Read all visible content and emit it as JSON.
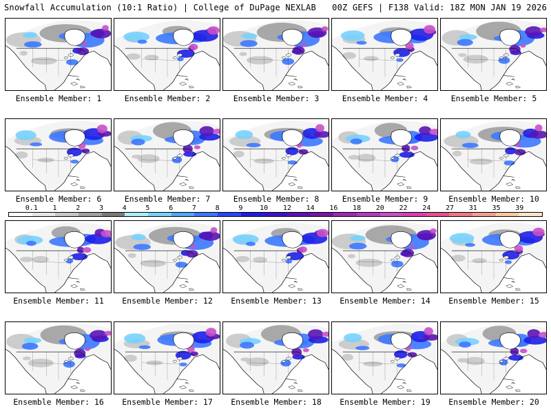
{
  "header": {
    "left_title": "Snowfall Accumulation (10:1 Ratio) | College of DuPage NEXLAB",
    "right_title": "00Z GEFS | F138 Valid: 18Z MON JAN 19 2026"
  },
  "panels": [
    {
      "label": "Ensemble Member: 1"
    },
    {
      "label": "Ensemble Member: 2"
    },
    {
      "label": "Ensemble Member: 3"
    },
    {
      "label": "Ensemble Member: 4"
    },
    {
      "label": "Ensemble Member: 5"
    },
    {
      "label": "Ensemble Member: 6"
    },
    {
      "label": "Ensemble Member: 7"
    },
    {
      "label": "Ensemble Member: 8"
    },
    {
      "label": "Ensemble Member: 9"
    },
    {
      "label": "Ensemble Member: 10"
    },
    {
      "label": "Ensemble Member: 11"
    },
    {
      "label": "Ensemble Member: 12"
    },
    {
      "label": "Ensemble Member: 13"
    },
    {
      "label": "Ensemble Member: 14"
    },
    {
      "label": "Ensemble Member: 15"
    },
    {
      "label": "Ensemble Member: 16"
    },
    {
      "label": "Ensemble Member: 17"
    },
    {
      "label": "Ensemble Member: 18"
    },
    {
      "label": "Ensemble Member: 19"
    },
    {
      "label": "Ensemble Member: 20"
    }
  ],
  "scale": {
    "labels": [
      "0.1",
      "1",
      "2",
      "3",
      "4",
      "5",
      "6",
      "7",
      "8",
      "9",
      "10",
      "12",
      "14",
      "16",
      "18",
      "20",
      "22",
      "24",
      "27",
      "31",
      "35",
      "39"
    ],
    "colors": [
      "#ffffff",
      "#e6e6e6",
      "#c8c8c8",
      "#a0a0a0",
      "#7a7a7a",
      "#a8f0ff",
      "#78d2ff",
      "#50a8ff",
      "#3c78ff",
      "#2846ff",
      "#1e1ee6",
      "#3c14c8",
      "#5a14b4",
      "#7814aa",
      "#9a2cb4",
      "#b43cbe",
      "#c850c8",
      "#dc3cb4",
      "#e6508c",
      "#f07882",
      "#f4a08c",
      "#fac8a0",
      "#fde6c8"
    ]
  }
}
